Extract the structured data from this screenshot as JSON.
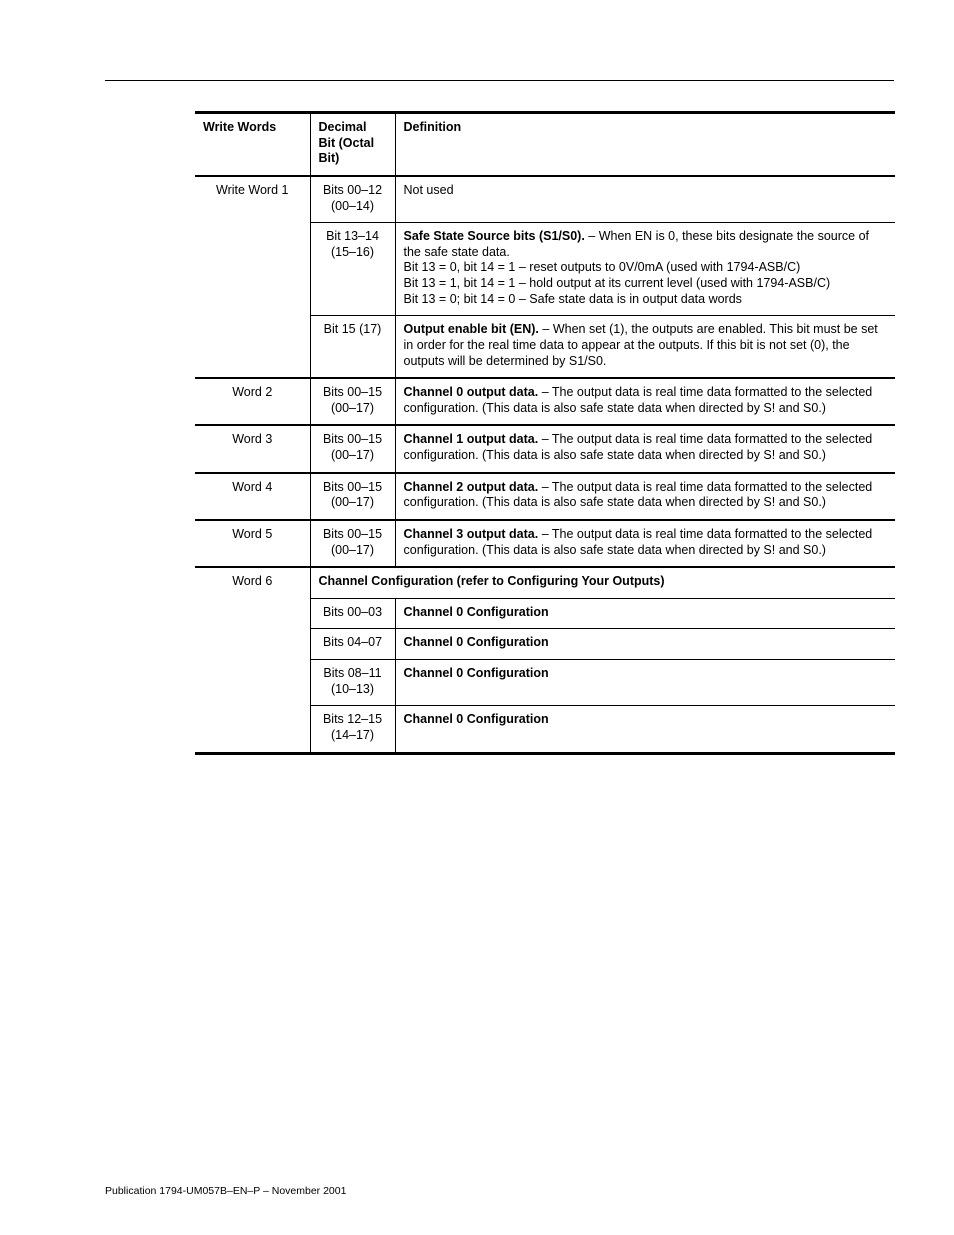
{
  "headers": {
    "col0": "Write Words",
    "col1": "Decimal Bit (Octal Bit)",
    "col2": "Definition"
  },
  "rows": {
    "r0": {
      "words": "Write Word 1",
      "bits": "Bits 00–12 (00–14)",
      "def": "Not used"
    },
    "r1": {
      "bits": "Bit 13–14 (15–16)",
      "def_b": "Safe State Source bits (S1/S0).",
      "def": " – When EN is 0, these bits designate the source of the safe state data.\nBit 13 = 0, bit 14 = 1 – reset outputs to 0V/0mA (used with 1794-ASB/C)\nBit 13 = 1, bit 14 = 1 – hold output at its current level (used with 1794-ASB/C)\nBit 13 = 0; bit 14 = 0 – Safe state data is in output data words"
    },
    "r2": {
      "bits": "Bit 15 (17)",
      "def_b": "Output enable bit (EN).",
      "def": " – When set (1), the outputs are enabled. This bit must be set in order for the real time data to appear at the outputs. If this bit is not set (0), the outputs will be determined by S1/S0."
    },
    "r3": {
      "words": "Word 2",
      "bits": "Bits 00–15 (00–17)",
      "def_b": "Channel 0 output data.",
      "def": " – The output data is real time data formatted to the selected configuration. (This data is also safe state data when directed by S! and S0.)"
    },
    "r4": {
      "words": "Word 3",
      "bits": "Bits 00–15 (00–17)",
      "def_b": "Channel 1 output data.",
      "def": " – The output data is real time data formatted to the selected configuration. (This data is also safe state data when directed by S! and S0.)"
    },
    "r5": {
      "words": "Word 4",
      "bits": "Bits 00–15 (00–17)",
      "def_b": "Channel 2 output data.",
      "def": " – The output data is real time data formatted to the selected configuration. (This data is also safe state data when directed by S! and S0.)"
    },
    "r6": {
      "words": "Word 5",
      "bits": "Bits 00–15 (00–17)",
      "def_b": "Channel 3 output data.",
      "def": " – The output data is real time data formatted to the selected configuration. (This data is also safe state data when directed by S! and S0.)"
    },
    "r7": {
      "words": "Word 6",
      "span": "Channel Configuration (refer to Configuring Your Outputs)"
    },
    "r8": {
      "bits": "Bits 00–03",
      "def_b": "Channel 0 Configuration"
    },
    "r9": {
      "bits": "Bits 04–07",
      "def_b": "Channel 0 Configuration"
    },
    "r10": {
      "bits": "Bits 08–11 (10–13)",
      "def_b": "Channel 0 Configuration"
    },
    "r11": {
      "bits": "Bits 12–15 (14–17)",
      "def_b": "Channel 0 Configuration"
    }
  },
  "footer": "Publication 1794-UM057B–EN–P – November 2001"
}
